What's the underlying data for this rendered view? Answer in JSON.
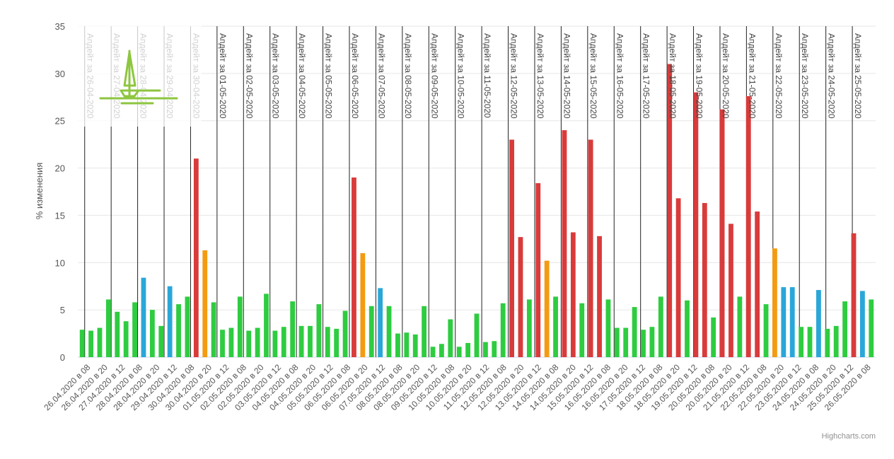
{
  "chart_data": {
    "type": "bar",
    "ylabel": "% изменения",
    "ylim": [
      0,
      35
    ],
    "yticks": [
      0,
      5,
      10,
      15,
      20,
      25,
      30,
      35
    ],
    "grid": true,
    "credit": "Highcharts.com",
    "categories": [
      "26.04.2020 в 08",
      "26.04.2020 в 20",
      "27.04.2020 в 12",
      "28.04.2020 в 08",
      "28.04.2020 в 20",
      "29.04.2020 в 12",
      "30.04.2020 в 08",
      "30.04.2020 в 20",
      "01.05.2020 в 12",
      "02.05.2020 в 08",
      "02.05.2020 в 20",
      "03.05.2020 в 12",
      "04.05.2020 в 08",
      "04.05.2020 в 20",
      "05.05.2020 в 12",
      "06.05.2020 в 08",
      "06.05.2020 в 20",
      "07.05.2020 в 12",
      "08.05.2020 в 08",
      "08.05.2020 в 20",
      "09.05.2020 в 12",
      "10.05.2020 в 08",
      "10.05.2020 в 20",
      "11.05.2020 в 12",
      "12.05.2020 в 08",
      "12.05.2020 в 20",
      "13.05.2020 в 12",
      "14.05.2020 в 08",
      "14.05.2020 в 20",
      "15.05.2020 в 12",
      "16.05.2020 в 08",
      "16.05.2020 в 20",
      "17.05.2020 в 12",
      "18.05.2020 в 08",
      "18.05.2020 в 20",
      "19.05.2020 в 12",
      "20.05.2020 в 08",
      "20.05.2020 в 20",
      "21.05.2020 в 12",
      "22.05.2020 в 08",
      "22.05.2020 в 20",
      "23.05.2020 в 12",
      "24.05.2020 в 08",
      "24.05.2020 в 20",
      "25.05.2020 в 12",
      "26.05.2020 в 08"
    ],
    "bars": [
      {
        "value": 2.9,
        "color": "#2ecc40"
      },
      {
        "value": 2.8,
        "color": "#2ecc40"
      },
      {
        "value": 3.1,
        "color": "#2ecc40"
      },
      {
        "value": 6.1,
        "color": "#2ecc40"
      },
      {
        "value": 4.8,
        "color": "#2ecc40"
      },
      {
        "value": 3.8,
        "color": "#2ecc40"
      },
      {
        "value": 5.8,
        "color": "#2ecc40"
      },
      {
        "value": 8.4,
        "color": "#2aa7d8"
      },
      {
        "value": 5.0,
        "color": "#2ecc40"
      },
      {
        "value": 3.3,
        "color": "#2ecc40"
      },
      {
        "value": 7.5,
        "color": "#2aa7d8"
      },
      {
        "value": 5.6,
        "color": "#2ecc40"
      },
      {
        "value": 6.4,
        "color": "#2ecc40"
      },
      {
        "value": 21.0,
        "color": "#d93b3b"
      },
      {
        "value": 11.3,
        "color": "#f39c12"
      },
      {
        "value": 5.8,
        "color": "#2ecc40"
      },
      {
        "value": 2.9,
        "color": "#2ecc40"
      },
      {
        "value": 3.1,
        "color": "#2ecc40"
      },
      {
        "value": 6.4,
        "color": "#2ecc40"
      },
      {
        "value": 2.8,
        "color": "#2ecc40"
      },
      {
        "value": 3.1,
        "color": "#2ecc40"
      },
      {
        "value": 6.7,
        "color": "#2ecc40"
      },
      {
        "value": 2.8,
        "color": "#2ecc40"
      },
      {
        "value": 3.2,
        "color": "#2ecc40"
      },
      {
        "value": 5.9,
        "color": "#2ecc40"
      },
      {
        "value": 3.3,
        "color": "#2ecc40"
      },
      {
        "value": 3.3,
        "color": "#2ecc40"
      },
      {
        "value": 5.6,
        "color": "#2ecc40"
      },
      {
        "value": 3.2,
        "color": "#2ecc40"
      },
      {
        "value": 3.0,
        "color": "#2ecc40"
      },
      {
        "value": 4.9,
        "color": "#2ecc40"
      },
      {
        "value": 19.0,
        "color": "#d93b3b"
      },
      {
        "value": 11.0,
        "color": "#f39c12"
      },
      {
        "value": 5.4,
        "color": "#2ecc40"
      },
      {
        "value": 7.3,
        "color": "#2aa7d8"
      },
      {
        "value": 5.4,
        "color": "#2ecc40"
      },
      {
        "value": 2.5,
        "color": "#2ecc40"
      },
      {
        "value": 2.6,
        "color": "#2ecc40"
      },
      {
        "value": 2.4,
        "color": "#2ecc40"
      },
      {
        "value": 5.4,
        "color": "#2ecc40"
      },
      {
        "value": 1.1,
        "color": "#2ecc40"
      },
      {
        "value": 1.4,
        "color": "#2ecc40"
      },
      {
        "value": 4.0,
        "color": "#2ecc40"
      },
      {
        "value": 1.1,
        "color": "#2ecc40"
      },
      {
        "value": 1.5,
        "color": "#2ecc40"
      },
      {
        "value": 4.6,
        "color": "#2ecc40"
      },
      {
        "value": 1.6,
        "color": "#2ecc40"
      },
      {
        "value": 1.7,
        "color": "#2ecc40"
      },
      {
        "value": 5.7,
        "color": "#2ecc40"
      },
      {
        "value": 23.0,
        "color": "#d93b3b"
      },
      {
        "value": 12.7,
        "color": "#d93b3b"
      },
      {
        "value": 6.1,
        "color": "#2ecc40"
      },
      {
        "value": 18.4,
        "color": "#d93b3b"
      },
      {
        "value": 10.2,
        "color": "#f39c12"
      },
      {
        "value": 6.4,
        "color": "#2ecc40"
      },
      {
        "value": 24.0,
        "color": "#d93b3b"
      },
      {
        "value": 13.2,
        "color": "#d93b3b"
      },
      {
        "value": 5.7,
        "color": "#2ecc40"
      },
      {
        "value": 23.0,
        "color": "#d93b3b"
      },
      {
        "value": 12.8,
        "color": "#d93b3b"
      },
      {
        "value": 6.1,
        "color": "#2ecc40"
      },
      {
        "value": 3.1,
        "color": "#2ecc40"
      },
      {
        "value": 3.1,
        "color": "#2ecc40"
      },
      {
        "value": 5.3,
        "color": "#2ecc40"
      },
      {
        "value": 2.9,
        "color": "#2ecc40"
      },
      {
        "value": 3.2,
        "color": "#2ecc40"
      },
      {
        "value": 6.4,
        "color": "#2ecc40"
      },
      {
        "value": 31.0,
        "color": "#d93b3b"
      },
      {
        "value": 16.8,
        "color": "#d93b3b"
      },
      {
        "value": 6.0,
        "color": "#2ecc40"
      },
      {
        "value": 28.0,
        "color": "#d93b3b"
      },
      {
        "value": 16.3,
        "color": "#d93b3b"
      },
      {
        "value": 4.2,
        "color": "#2ecc40"
      },
      {
        "value": 26.2,
        "color": "#d93b3b"
      },
      {
        "value": 14.1,
        "color": "#d93b3b"
      },
      {
        "value": 6.4,
        "color": "#2ecc40"
      },
      {
        "value": 27.6,
        "color": "#d93b3b"
      },
      {
        "value": 15.4,
        "color": "#d93b3b"
      },
      {
        "value": 5.6,
        "color": "#2ecc40"
      },
      {
        "value": 11.5,
        "color": "#f39c12"
      },
      {
        "value": 7.4,
        "color": "#2aa7d8"
      },
      {
        "value": 7.4,
        "color": "#2aa7d8"
      },
      {
        "value": 3.2,
        "color": "#2ecc40"
      },
      {
        "value": 3.2,
        "color": "#2ecc40"
      },
      {
        "value": 7.1,
        "color": "#2aa7d8"
      },
      {
        "value": 3.0,
        "color": "#2ecc40"
      },
      {
        "value": 3.3,
        "color": "#2ecc40"
      },
      {
        "value": 5.9,
        "color": "#2ecc40"
      },
      {
        "value": 13.1,
        "color": "#d93b3b"
      },
      {
        "value": 7.0,
        "color": "#2aa7d8"
      },
      {
        "value": 6.1,
        "color": "#2ecc40"
      }
    ],
    "annotations": [
      {
        "text": "Апдейт за 26-04-2020",
        "category": "26.04.2020 в 08"
      },
      {
        "text": "Апдейт за 27-04-2020",
        "category": "27.04.2020 в 12"
      },
      {
        "text": "Апдейт за 28-04-2020",
        "category": "28.04.2020 в 08"
      },
      {
        "text": "Апдейт за 29-04-2020",
        "category": "29.04.2020 в 12"
      },
      {
        "text": "Апдейт за 30-04-2020",
        "category": "30.04.2020 в 08"
      },
      {
        "text": "Апдейт за 01-05-2020",
        "category": "01.05.2020 в 12"
      },
      {
        "text": "Апдейт за 02-05-2020",
        "category": "02.05.2020 в 08"
      },
      {
        "text": "Апдейт за 03-05-2020",
        "category": "03.05.2020 в 12"
      },
      {
        "text": "Апдейт за 04-05-2020",
        "category": "04.05.2020 в 08"
      },
      {
        "text": "Апдейт за 05-05-2020",
        "category": "05.05.2020 в 12"
      },
      {
        "text": "Апдейт за 06-05-2020",
        "category": "06.05.2020 в 08"
      },
      {
        "text": "Апдейт за 07-05-2020",
        "category": "07.05.2020 в 12"
      },
      {
        "text": "Апдейт за 08-05-2020",
        "category": "08.05.2020 в 08"
      },
      {
        "text": "Апдейт за 09-05-2020",
        "category": "09.05.2020 в 12"
      },
      {
        "text": "Апдейт за 10-05-2020",
        "category": "10.05.2020 в 08"
      },
      {
        "text": "Апдейт за 11-05-2020",
        "category": "11.05.2020 в 12"
      },
      {
        "text": "Апдейт за 12-05-2020",
        "category": "12.05.2020 в 08"
      },
      {
        "text": "Апдейт за 13-05-2020",
        "category": "13.05.2020 в 12"
      },
      {
        "text": "Апдейт за 14-05-2020",
        "category": "14.05.2020 в 08"
      },
      {
        "text": "Апдейт за 15-05-2020",
        "category": "15.05.2020 в 12"
      },
      {
        "text": "Апдейт за 16-05-2020",
        "category": "16.05.2020 в 08"
      },
      {
        "text": "Апдейт за 17-05-2020",
        "category": "17.05.2020 в 12"
      },
      {
        "text": "Апдейт за 18-05-2020",
        "category": "18.05.2020 в 08"
      },
      {
        "text": "Апдейт за 19-05-2020",
        "category": "19.05.2020 в 12"
      },
      {
        "text": "Апдейт за 20-05-2020",
        "category": "20.05.2020 в 08"
      },
      {
        "text": "Апдейт за 21-05-2020",
        "category": "21.05.2020 в 12"
      },
      {
        "text": "Апдейт за 22-05-2020",
        "category": "22.05.2020 в 08"
      },
      {
        "text": "Апдейт за 23-05-2020",
        "category": "23.05.2020 в 12"
      },
      {
        "text": "Апдейт за 24-05-2020",
        "category": "24.05.2020 в 08"
      },
      {
        "text": "Апдейт за 25-05-2020",
        "category": "25.05.2020 в 12"
      }
    ]
  }
}
